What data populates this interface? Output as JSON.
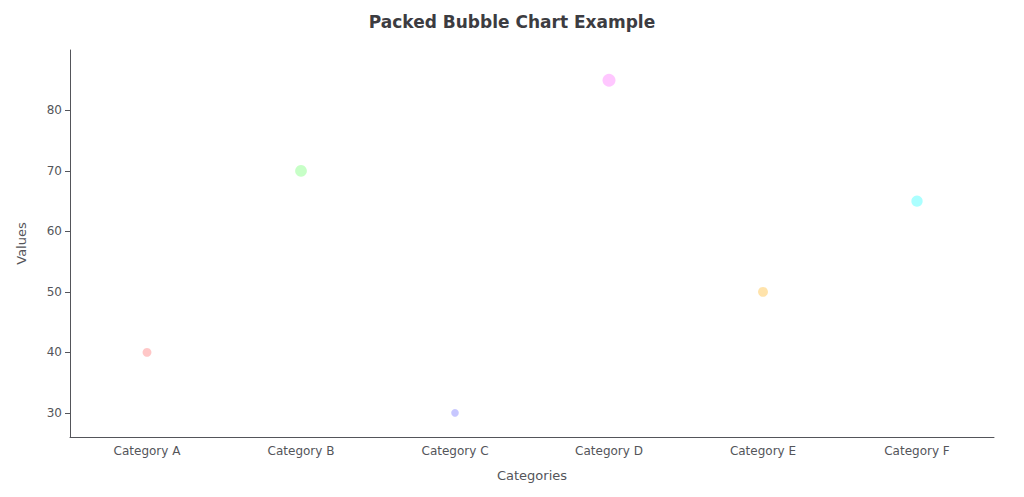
{
  "chart_data": {
    "type": "scatter",
    "title": "Packed Bubble Chart Example",
    "xlabel": "Categories",
    "ylabel": "Values",
    "categories": [
      "Category A",
      "Category B",
      "Category C",
      "Category D",
      "Category E",
      "Category F"
    ],
    "values": [
      40,
      70,
      30,
      85,
      50,
      65
    ],
    "colors": [
      "#FF9999",
      "#99FF99",
      "#9999FF",
      "#FF99FF",
      "#FFCC66",
      "#66FFFF"
    ],
    "ylim": [
      26,
      90
    ],
    "yticks": [
      30,
      40,
      50,
      60,
      70,
      80
    ],
    "grid": false
  }
}
